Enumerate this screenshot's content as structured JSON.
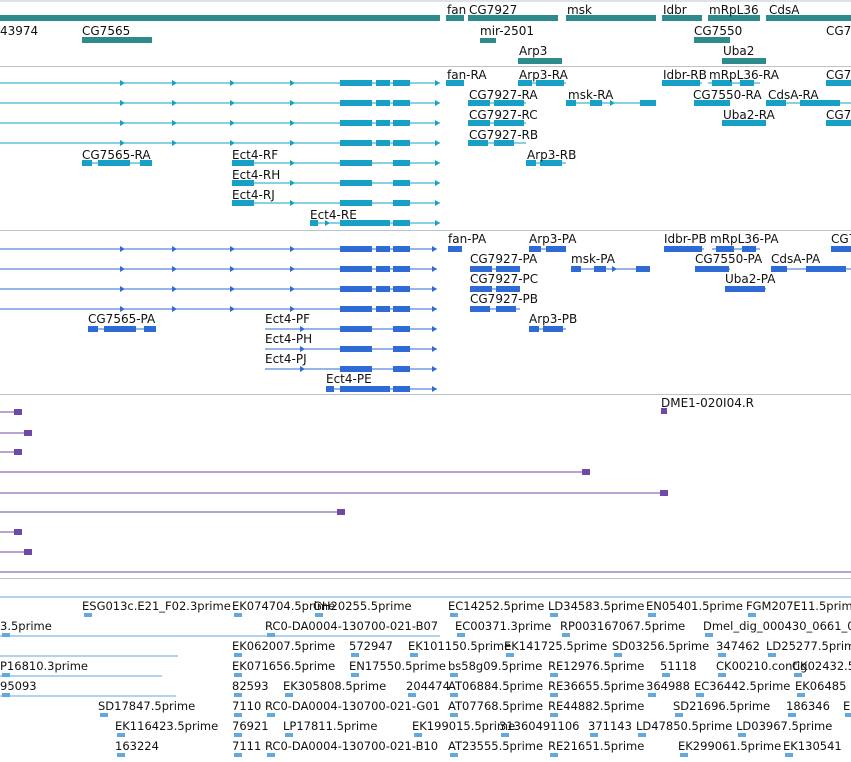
{
  "colors": {
    "gene": "#2e8b8b",
    "transcript_cg": "#16a0c6",
    "transcript_rs": "#2f6bd6",
    "cdna": "#6e49a8",
    "est": "#62a9e0",
    "divider": "#b9c4cc"
  },
  "gene_track": {
    "labels": [
      "fan",
      "CG7927",
      "msk",
      "Idbr",
      "mRpL36",
      "CdsA",
      "43974",
      "CG7565",
      "mir-2501",
      "CG7550",
      "CG7",
      "Arp3",
      "Uba2"
    ]
  },
  "transcript_track_1": {
    "labels": [
      "fan-RA",
      "Arp3-RA",
      "Idbr-RB",
      "mRpL36-RA",
      "CG7",
      "CG7927-RA",
      "msk-RA",
      "CG7550-RA",
      "CdsA-RA",
      "CG7927-RC",
      "Uba2-RA",
      "CG7",
      "CG7927-RB",
      "CG7565-RA",
      "Ect4-RF",
      "Arp3-RB",
      "Ect4-RH",
      "Ect4-RJ",
      "Ect4-RE"
    ]
  },
  "transcript_track_2": {
    "labels": [
      "fan-PA",
      "Arp3-PA",
      "Idbr-PB",
      "mRpL36-PA",
      "CG7",
      "CG7927-PA",
      "msk-PA",
      "CG7550-PA",
      "CdsA-PA",
      "CG7927-PC",
      "Uba2-PA",
      "CG7927-PB",
      "CG7565-PA",
      "Ect4-PF",
      "Arp3-PB",
      "Ect4-PH",
      "Ect4-PJ",
      "Ect4-PE"
    ]
  },
  "cdna_track": {
    "labels": [
      "DME1-020I04.R"
    ]
  },
  "est_track": {
    "labels": [
      "ESG013c.E21_F02.3prime",
      "EK074704.5prime",
      "GH20255.5prime",
      "EC14252.5prime",
      "LD34583.5prime",
      "EN05401.5prime",
      "FGM207E11.5prime",
      "3.5prime",
      "RC0-DA0004-130700-021-B07",
      "EC00371.3prime",
      "RP003167067.5prime",
      "Dmel_dig_000430_0661_0",
      "EK062007.5prime",
      "572947",
      "EK101150.5prime",
      "EK141725.5prime",
      "SD03256.5prime",
      "347462",
      "LD25277.5prime",
      "P16810.3prime",
      "EK071656.5prime",
      "EN17550.5prime",
      "bs58g09.5prime",
      "RE12976.5prime",
      "51118",
      "CK00210.contig",
      "CK02432.5",
      "95093",
      "82593",
      "EK305808.5prime",
      "204474",
      "AT06884.5prime",
      "RE36655.5prime",
      "364988",
      "EC36442.5prime",
      "EK06485",
      "SD17847.5prime",
      "7110",
      "RC0-DA0004-130700-021-G01",
      "AT07768.5prime",
      "RE44882.5prime",
      "SD21696.5prime",
      "186346",
      "E",
      "EK116423.5prime",
      "76921",
      "LP17811.5prime",
      "EK199015.5prime",
      "31360491106",
      "371143",
      "LD47850.5prime",
      "LD03967.5prime",
      "163224",
      "7111",
      "RC0-DA0004-130700-021-B10",
      "AT23555.5prime",
      "RE21651.5prime",
      "EK299061.5prime",
      "EK130541"
    ]
  }
}
